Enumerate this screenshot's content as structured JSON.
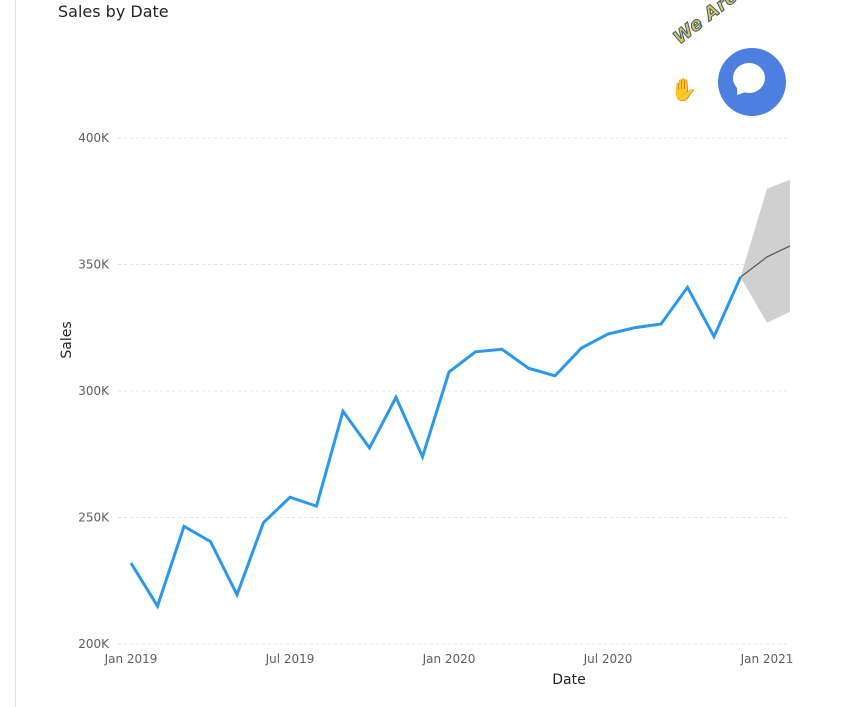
{
  "chart_data": {
    "type": "line",
    "title": "Sales by Date",
    "xlabel": "Date",
    "ylabel": "Sales",
    "ylim": [
      200000,
      400000
    ],
    "yticks": [
      {
        "value": 200000,
        "label": "200K"
      },
      {
        "value": 250000,
        "label": "250K"
      },
      {
        "value": 300000,
        "label": "300K"
      },
      {
        "value": 350000,
        "label": "350K"
      },
      {
        "value": 400000,
        "label": "400K"
      }
    ],
    "xticks": [
      {
        "date": "2019-01",
        "label": "Jan 2019"
      },
      {
        "date": "2019-07",
        "label": "Jul 2019"
      },
      {
        "date": "2020-01",
        "label": "Jan 2020"
      },
      {
        "date": "2020-07",
        "label": "Jul 2020"
      },
      {
        "date": "2021-01",
        "label": "Jan 2021"
      }
    ],
    "grid": true,
    "series": [
      {
        "color": "#2b98ef",
        "points": [
          {
            "x": "2019-01",
            "y": 232000
          },
          {
            "x": "2019-02",
            "y": 215000
          },
          {
            "x": "2019-03",
            "y": 246500
          },
          {
            "x": "2019-04",
            "y": 240500
          },
          {
            "x": "2019-05",
            "y": 219500
          },
          {
            "x": "2019-06",
            "y": 248000
          },
          {
            "x": "2019-07",
            "y": 258000
          },
          {
            "x": "2019-08",
            "y": 254500
          },
          {
            "x": "2019-09",
            "y": 292000
          },
          {
            "x": "2019-10",
            "y": 277500
          },
          {
            "x": "2019-11",
            "y": 297500
          },
          {
            "x": "2019-12",
            "y": 274000
          },
          {
            "x": "2020-01",
            "y": 307500
          },
          {
            "x": "2020-02",
            "y": 315500
          },
          {
            "x": "2020-03",
            "y": 316500
          },
          {
            "x": "2020-04",
            "y": 309000
          },
          {
            "x": "2020-05",
            "y": 306000
          },
          {
            "x": "2020-06",
            "y": 317000
          },
          {
            "x": "2020-07",
            "y": 322500
          },
          {
            "x": "2020-08",
            "y": 325000
          },
          {
            "x": "2020-09",
            "y": 326500
          },
          {
            "x": "2020-10",
            "y": 341000
          },
          {
            "x": "2020-11",
            "y": 321500
          },
          {
            "x": "2020-12",
            "y": 345000
          }
        ]
      }
    ],
    "forecast": {
      "line_color": "#555555",
      "band_color": "#d0d0d0",
      "points": [
        {
          "x": "2020-12",
          "y": 345000,
          "lower": 345000,
          "upper": 345000
        },
        {
          "x": "2021-01",
          "y": 353000,
          "lower": 327000,
          "upper": 380000
        },
        {
          "x": "2021-02",
          "y": 358000,
          "lower": 332000,
          "upper": 384000
        }
      ]
    }
  },
  "badge": {
    "text": "We Are Here!",
    "icon": "chat-bubble-icon",
    "hand_icon": "waving-hand-icon",
    "circle_color": "#4d7fe0",
    "text_color": "#e9c541"
  }
}
